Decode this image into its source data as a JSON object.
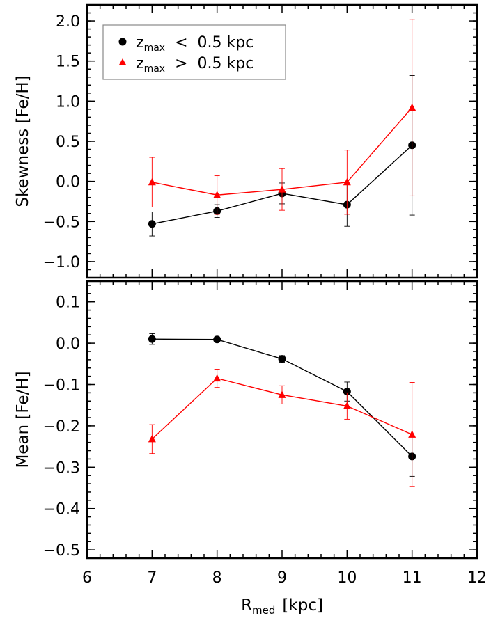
{
  "chart_data": [
    {
      "type": "line",
      "panel": "top",
      "ylabel": "Skewness [Fe/H]",
      "xlim": [
        6,
        12
      ],
      "ylim": [
        -1.2,
        2.2
      ],
      "yticks": [
        "−1.0",
        "−0.5",
        "0.0",
        "0.5",
        "1.0",
        "1.5",
        "2.0"
      ],
      "legend": {
        "placement": "top-left",
        "entries": [
          {
            "series": 0,
            "symbol": "z",
            "sub": "max",
            "relation": "<",
            "value": "0.5 kpc"
          },
          {
            "series": 1,
            "symbol": "z",
            "sub": "max",
            "relation": ">",
            "value": "0.5 kpc"
          }
        ]
      },
      "series": [
        {
          "name": "z_max < 0.5 kpc",
          "color": "#000000",
          "marker": "circle",
          "x": [
            7,
            8,
            9,
            10,
            11
          ],
          "y": [
            -0.53,
            -0.37,
            -0.15,
            -0.29,
            0.45
          ],
          "err": [
            0.15,
            0.08,
            0.13,
            0.27,
            0.87
          ]
        },
        {
          "name": "z_max > 0.5 kpc",
          "color": "#ff0000",
          "marker": "triangle",
          "x": [
            7,
            8,
            9,
            10,
            11
          ],
          "y": [
            -0.01,
            -0.17,
            -0.1,
            -0.01,
            0.92
          ],
          "err": [
            0.31,
            0.24,
            0.26,
            0.4,
            1.1
          ]
        }
      ]
    },
    {
      "type": "line",
      "panel": "bottom",
      "ylabel": "Mean [Fe/H]",
      "xlabel_main": "R",
      "xlabel_sub": "med",
      "xlabel_unit": "[kpc]",
      "xlim": [
        6,
        12
      ],
      "ylim": [
        -0.52,
        0.15
      ],
      "xticks": [
        "6",
        "7",
        "8",
        "9",
        "10",
        "11",
        "12"
      ],
      "yticks": [
        "−0.5",
        "−0.4",
        "−0.3",
        "−0.2",
        "−0.1",
        "0.0",
        "0.1"
      ],
      "series": [
        {
          "name": "z_max < 0.5 kpc",
          "color": "#000000",
          "marker": "circle",
          "x": [
            7,
            8,
            9,
            10,
            11
          ],
          "y": [
            0.01,
            0.009,
            -0.038,
            -0.117,
            -0.274
          ],
          "err": [
            0.013,
            0.006,
            0.008,
            0.023,
            0.048
          ]
        },
        {
          "name": "z_max > 0.5 kpc",
          "color": "#ff0000",
          "marker": "triangle",
          "x": [
            7,
            8,
            9,
            10,
            11
          ],
          "y": [
            -0.232,
            -0.085,
            -0.125,
            -0.152,
            -0.221
          ],
          "err": [
            0.035,
            0.022,
            0.022,
            0.032,
            0.126
          ]
        }
      ]
    }
  ]
}
